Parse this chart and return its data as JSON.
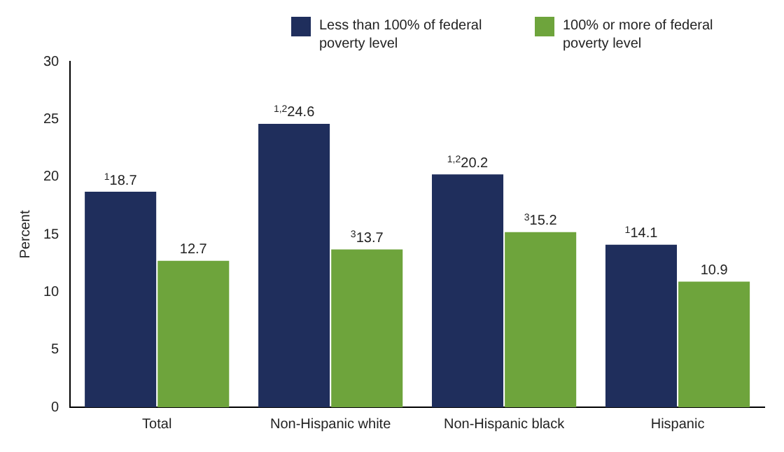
{
  "chart_data": {
    "type": "bar",
    "ylabel": "Percent",
    "categories": [
      "Total",
      "Non-Hispanic white",
      "Non-Hispanic black",
      "Hispanic"
    ],
    "series": [
      {
        "name": "Less than 100% of federal poverty level",
        "color": "#1f2e5c",
        "values": [
          18.7,
          24.6,
          20.2,
          14.1
        ],
        "value_labels": [
          "$^{1}$18.7",
          "$^{1,2}$24.6",
          "$^{1,2}$20.2",
          "$^{1}$14.1"
        ]
      },
      {
        "name": "100% or more of federal poverty level",
        "color": "#6ea43c",
        "values": [
          12.7,
          13.7,
          15.2,
          10.9
        ],
        "value_labels": [
          "12.7",
          "$^{3}$13.7",
          "$^{3}$15.2",
          "10.9"
        ]
      }
    ],
    "ylim": [
      0,
      30
    ],
    "yticks": [
      0,
      5,
      10,
      15,
      20,
      25,
      30
    ],
    "grid": false,
    "legend": "top right"
  }
}
